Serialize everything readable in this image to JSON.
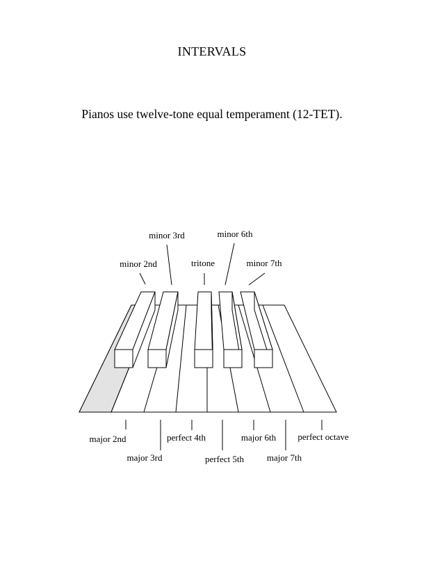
{
  "header": {
    "title": "INTERVALS",
    "subtitle": "Pianos use twelve-tone equal temperament (12-TET)."
  },
  "colors": {
    "ink": "#000000",
    "tonic_key_fill": "#e3e3e3",
    "key_fill": "#ffffff"
  },
  "intervals": {
    "minor_2nd": "minor 2nd",
    "minor_3rd": "minor 3rd",
    "tritone": "tritone",
    "minor_6th": "minor 6th",
    "minor_7th": "minor 7th",
    "major_2nd": "major 2nd",
    "major_3rd": "major 3rd",
    "perfect_4th": "perfect 4th",
    "perfect_5th": "perfect 5th",
    "major_6th": "major 6th",
    "major_7th": "major 7th",
    "perfect_octave": "perfect octave"
  }
}
